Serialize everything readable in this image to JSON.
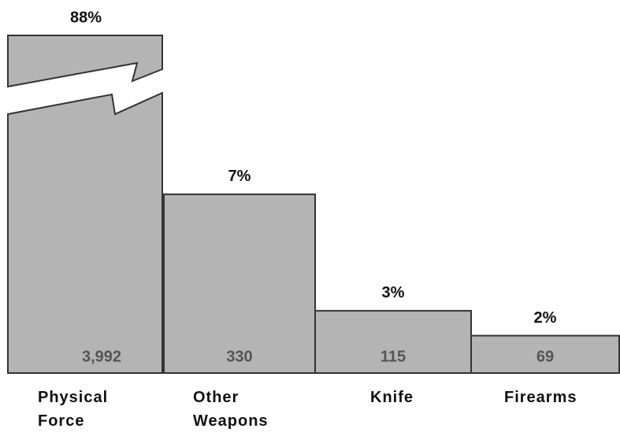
{
  "chart_data": {
    "type": "bar",
    "categories": [
      "Physical Force",
      "Other Weapons",
      "Knife",
      "Firearms"
    ],
    "values": [
      3992,
      330,
      115,
      69
    ],
    "value_labels": [
      "3,992",
      "330",
      "115",
      "69"
    ],
    "shares": [
      88,
      7,
      3,
      2
    ],
    "share_labels": [
      "88%",
      "7%",
      "3%",
      "2%"
    ],
    "color": "#b4b4b4",
    "ylim": [
      0,
      600
    ]
  }
}
